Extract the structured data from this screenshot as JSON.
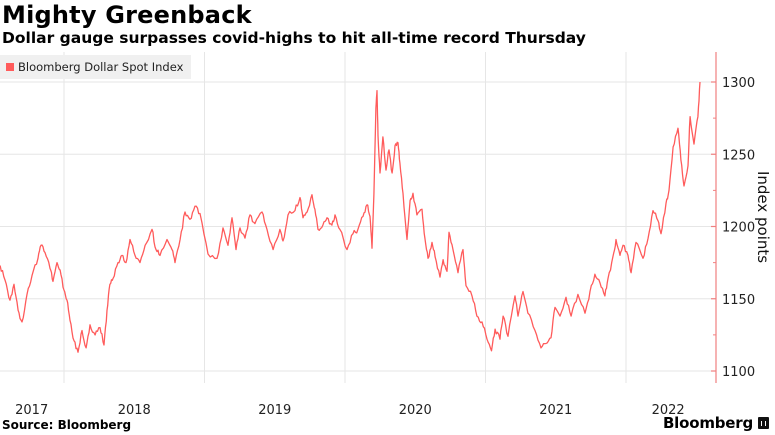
{
  "header": {
    "title": "Mighty Greenback",
    "subtitle": "Dollar gauge surpasses covid-highs to hit all-time record Thursday"
  },
  "footer": {
    "source": "Source: Bloomberg",
    "brand": "Bloomberg",
    "brand_icon": "bloomberg-chart-icon"
  },
  "colors": {
    "series": "#ff5b5b",
    "axis": "#f08080",
    "grid": "#e6e6e6",
    "legend_bg": "#f0f0f0"
  },
  "chart_data": {
    "type": "line",
    "title": "Mighty Greenback",
    "subtitle": "Dollar gauge surpasses covid-highs to hit all-time record Thursday",
    "xlabel": "",
    "ylabel": "Index points",
    "y_axis_side": "right",
    "grid": true,
    "legend_placement": "top-left",
    "xlim": [
      2017.545,
      2022.6
    ],
    "ylim": [
      1092,
      1318
    ],
    "y_ticks": [
      1100,
      1150,
      1200,
      1250,
      1300
    ],
    "y_tick_labels": [
      "1100",
      "1150",
      "1200",
      "1250",
      "1300"
    ],
    "x_gridlines": [
      2018,
      2019,
      2020,
      2021,
      2022
    ],
    "x_tick_labels": [
      {
        "label": "2017",
        "at": 2017.77
      },
      {
        "label": "2018",
        "at": 2018.5
      },
      {
        "label": "2019",
        "at": 2019.5
      },
      {
        "label": "2020",
        "at": 2020.5
      },
      {
        "label": "2021",
        "at": 2021.5
      },
      {
        "label": "2022",
        "at": 2022.3
      }
    ],
    "series": [
      {
        "name": "Bloomberg Dollar Spot Index",
        "points": [
          [
            2017.545,
            1173
          ],
          [
            2017.58,
            1163
          ],
          [
            2017.616,
            1149
          ],
          [
            2017.644,
            1160
          ],
          [
            2017.673,
            1142
          ],
          [
            2017.701,
            1134
          ],
          [
            2017.737,
            1153
          ],
          [
            2017.772,
            1166
          ],
          [
            2017.815,
            1178
          ],
          [
            2017.836,
            1187
          ],
          [
            2017.865,
            1182
          ],
          [
            2017.9,
            1171
          ],
          [
            2017.922,
            1162
          ],
          [
            2017.95,
            1175
          ],
          [
            2017.972,
            1170
          ],
          [
            2018.0,
            1156
          ],
          [
            2018.021,
            1149
          ],
          [
            2018.043,
            1135
          ],
          [
            2018.071,
            1121
          ],
          [
            2018.1,
            1113
          ],
          [
            2018.128,
            1128
          ],
          [
            2018.157,
            1116
          ],
          [
            2018.185,
            1132
          ],
          [
            2018.221,
            1125
          ],
          [
            2018.256,
            1130
          ],
          [
            2018.285,
            1118
          ],
          [
            2018.306,
            1142
          ],
          [
            2018.327,
            1160
          ],
          [
            2018.349,
            1164
          ],
          [
            2018.384,
            1175
          ],
          [
            2018.413,
            1180
          ],
          [
            2018.441,
            1175
          ],
          [
            2018.47,
            1191
          ],
          [
            2018.505,
            1180
          ],
          [
            2018.541,
            1175
          ],
          [
            2018.577,
            1187
          ],
          [
            2018.626,
            1198
          ],
          [
            2018.655,
            1184
          ],
          [
            2018.683,
            1180
          ],
          [
            2018.733,
            1191
          ],
          [
            2018.769,
            1184
          ],
          [
            2018.79,
            1175
          ],
          [
            2018.826,
            1191
          ],
          [
            2018.861,
            1210
          ],
          [
            2018.897,
            1205
          ],
          [
            2018.932,
            1214
          ],
          [
            2018.968,
            1209
          ],
          [
            2019.025,
            1181
          ],
          [
            2019.089,
            1178
          ],
          [
            2019.132,
            1199
          ],
          [
            2019.167,
            1187
          ],
          [
            2019.196,
            1206
          ],
          [
            2019.224,
            1184
          ],
          [
            2019.253,
            1199
          ],
          [
            2019.288,
            1192
          ],
          [
            2019.324,
            1208
          ],
          [
            2019.359,
            1202
          ],
          [
            2019.409,
            1210
          ],
          [
            2019.445,
            1198
          ],
          [
            2019.488,
            1184
          ],
          [
            2019.537,
            1198
          ],
          [
            2019.559,
            1190
          ],
          [
            2019.594,
            1208
          ],
          [
            2019.644,
            1211
          ],
          [
            2019.68,
            1220
          ],
          [
            2019.701,
            1206
          ],
          [
            2019.73,
            1210
          ],
          [
            2019.765,
            1222
          ],
          [
            2019.786,
            1212
          ],
          [
            2019.808,
            1198
          ],
          [
            2019.843,
            1201
          ],
          [
            2019.872,
            1206
          ],
          [
            2019.907,
            1201
          ],
          [
            2019.929,
            1208
          ],
          [
            2019.964,
            1198
          ],
          [
            2020.014,
            1184
          ],
          [
            2020.057,
            1195
          ],
          [
            2020.092,
            1198
          ],
          [
            2020.128,
            1207
          ],
          [
            2020.157,
            1215
          ],
          [
            2020.178,
            1207
          ],
          [
            2020.192,
            1185
          ],
          [
            2020.206,
            1222
          ],
          [
            2020.22,
            1282
          ],
          [
            2020.228,
            1294
          ],
          [
            2020.235,
            1263
          ],
          [
            2020.249,
            1237
          ],
          [
            2020.27,
            1262
          ],
          [
            2020.292,
            1239
          ],
          [
            2020.313,
            1253
          ],
          [
            2020.335,
            1237
          ],
          [
            2020.356,
            1256
          ],
          [
            2020.377,
            1258
          ],
          [
            2020.391,
            1244
          ],
          [
            2020.413,
            1223
          ],
          [
            2020.441,
            1191
          ],
          [
            2020.463,
            1218
          ],
          [
            2020.484,
            1223
          ],
          [
            2020.512,
            1208
          ],
          [
            2020.548,
            1212
          ],
          [
            2020.569,
            1192
          ],
          [
            2020.591,
            1178
          ],
          [
            2020.619,
            1189
          ],
          [
            2020.641,
            1179
          ],
          [
            2020.676,
            1165
          ],
          [
            2020.698,
            1177
          ],
          [
            2020.726,
            1169
          ],
          [
            2020.74,
            1196
          ],
          [
            2020.769,
            1184
          ],
          [
            2020.804,
            1168
          ],
          [
            2020.84,
            1184
          ],
          [
            2020.861,
            1159
          ],
          [
            2020.904,
            1152
          ],
          [
            2020.939,
            1138
          ],
          [
            2020.975,
            1134
          ],
          [
            2021.011,
            1122
          ],
          [
            2021.043,
            1114
          ],
          [
            2021.068,
            1129
          ],
          [
            2021.103,
            1122
          ],
          [
            2021.125,
            1138
          ],
          [
            2021.16,
            1124
          ],
          [
            2021.21,
            1152
          ],
          [
            2021.231,
            1138
          ],
          [
            2021.267,
            1155
          ],
          [
            2021.302,
            1140
          ],
          [
            2021.352,
            1128
          ],
          [
            2021.395,
            1116
          ],
          [
            2021.431,
            1119
          ],
          [
            2021.466,
            1123
          ],
          [
            2021.495,
            1144
          ],
          [
            2021.53,
            1138
          ],
          [
            2021.573,
            1151
          ],
          [
            2021.609,
            1138
          ],
          [
            2021.658,
            1153
          ],
          [
            2021.708,
            1140
          ],
          [
            2021.744,
            1155
          ],
          [
            2021.779,
            1167
          ],
          [
            2021.815,
            1161
          ],
          [
            2021.85,
            1152
          ],
          [
            2021.872,
            1164
          ],
          [
            2021.907,
            1179
          ],
          [
            2021.929,
            1191
          ],
          [
            2021.957,
            1180
          ],
          [
            2021.979,
            1187
          ],
          [
            2022.014,
            1180
          ],
          [
            2022.036,
            1168
          ],
          [
            2022.071,
            1189
          ],
          [
            2022.121,
            1178
          ],
          [
            2022.157,
            1192
          ],
          [
            2022.192,
            1211
          ],
          [
            2022.228,
            1204
          ],
          [
            2022.249,
            1195
          ],
          [
            2022.285,
            1216
          ],
          [
            2022.306,
            1225
          ],
          [
            2022.335,
            1255
          ],
          [
            2022.37,
            1268
          ],
          [
            2022.391,
            1246
          ],
          [
            2022.413,
            1228
          ],
          [
            2022.441,
            1242
          ],
          [
            2022.456,
            1276
          ],
          [
            2022.484,
            1257
          ],
          [
            2022.512,
            1276
          ],
          [
            2022.527,
            1300
          ]
        ]
      }
    ]
  }
}
